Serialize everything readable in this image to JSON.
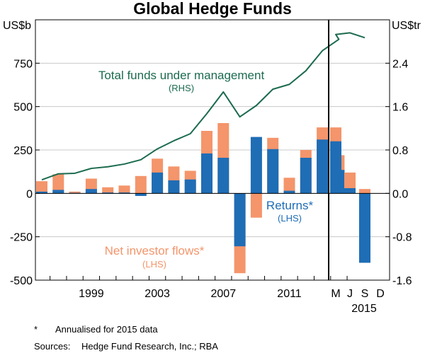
{
  "chart_data": {
    "type": "bar",
    "title": "Global Hedge Funds",
    "left_unit": "US$b",
    "right_unit": "US$tr",
    "ylim_left": [
      -500,
      1000
    ],
    "ylim_right": [
      -1.6,
      3.2
    ],
    "left_ticks": [
      "750",
      "500",
      "250",
      "0",
      "-250",
      "-500"
    ],
    "left_tick_values": [
      750,
      500,
      250,
      0,
      -250,
      -500
    ],
    "right_ticks": [
      "2.4",
      "1.6",
      "0.8",
      "0.0",
      "-0.8",
      "-1.6"
    ],
    "right_tick_values": [
      2.4,
      1.6,
      0.8,
      0.0,
      -0.8,
      -1.6
    ],
    "x_labels": [
      "1999",
      "2003",
      "2007",
      "2011"
    ],
    "x_label_years": [
      1999,
      2003,
      2007,
      2011
    ],
    "months": [
      "M",
      "J",
      "S",
      "D"
    ],
    "months_year": "2015",
    "annual_years": [
      1996,
      1997,
      1998,
      1999,
      2000,
      2001,
      2002,
      2003,
      2004,
      2005,
      2006,
      2007,
      2008,
      2009,
      2010,
      2011,
      2012,
      2013,
      2014
    ],
    "series": [
      {
        "name": "Returns*",
        "sublabel": "(LHS)",
        "color": "#1f6db5",
        "annual": [
          10,
          20,
          3,
          25,
          5,
          5,
          -15,
          120,
          75,
          80,
          230,
          205,
          -305,
          325,
          255,
          15,
          205,
          310,
          135
        ],
        "monthly": [
          300,
          30,
          -400
        ]
      },
      {
        "name": "Net investor flows*",
        "sublabel": "(LHS)",
        "color": "#f4956b",
        "annual": [
          70,
          110,
          10,
          85,
          35,
          45,
          100,
          200,
          155,
          130,
          360,
          405,
          -460,
          -140,
          320,
          90,
          250,
          380,
          220
        ],
        "monthly": [
          380,
          120,
          25
        ]
      },
      {
        "name": "Total funds under management",
        "sublabel": "(RHS)",
        "color": "#1b6b4e",
        "annual": [
          0.25,
          0.36,
          0.37,
          0.46,
          0.49,
          0.54,
          0.62,
          0.82,
          0.97,
          1.1,
          1.47,
          1.87,
          1.41,
          1.62,
          1.92,
          2.01,
          2.26,
          2.63,
          2.84
        ],
        "monthly": [
          2.93,
          2.96,
          2.87
        ]
      }
    ]
  },
  "footnotes": {
    "asterisk_mark": "*",
    "asterisk_text": "Annualised for 2015 data",
    "sources_label": "Sources:",
    "sources_text": "Hedge Fund Research, Inc.; RBA"
  }
}
